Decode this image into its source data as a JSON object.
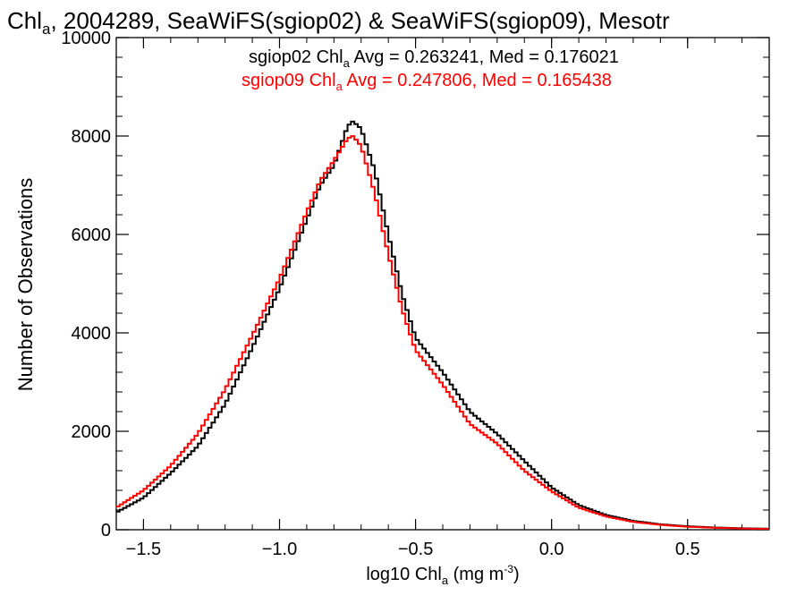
{
  "chart_data": {
    "type": "line",
    "title": {
      "pre": "Chl",
      "sub": "a",
      "post": ", 2004289, SeaWiFS(sgiop02) & SeaWiFS(sgiop09), Mesotr"
    },
    "xlabel": {
      "pre": "log10 Chl",
      "sub": "a",
      "post": " (mg m",
      "sup": "-3",
      "end": ")"
    },
    "ylabel": "Number of Observations",
    "xlim": [
      -1.6,
      0.8
    ],
    "ylim": [
      0,
      10000
    ],
    "x_ticks": [
      {
        "value": -1.5,
        "label": "−1.5"
      },
      {
        "value": -1.0,
        "label": "−1.0"
      },
      {
        "value": -0.5,
        "label": "−0.5"
      },
      {
        "value": 0.0,
        "label": "0.0"
      },
      {
        "value": 0.5,
        "label": "0.5"
      }
    ],
    "y_ticks": [
      {
        "value": 0,
        "label": "0"
      },
      {
        "value": 2000,
        "label": "2000"
      },
      {
        "value": 4000,
        "label": "4000"
      },
      {
        "value": 6000,
        "label": "6000"
      },
      {
        "value": 8000,
        "label": "8000"
      },
      {
        "value": 10000,
        "label": "10000"
      }
    ],
    "grid": false,
    "legend_position": "top-center",
    "series": [
      {
        "name": "sgiop02",
        "legend": {
          "pre": "sgiop02 Chl",
          "sub": "a",
          "post": " Avg = 0.263241, Med = 0.176021"
        },
        "color": "#000000",
        "x": [
          -1.6,
          -1.5,
          -1.4,
          -1.3,
          -1.2,
          -1.1,
          -1.0,
          -0.9,
          -0.85,
          -0.8,
          -0.75,
          -0.73,
          -0.7,
          -0.65,
          -0.6,
          -0.55,
          -0.5,
          -0.4,
          -0.3,
          -0.2,
          -0.1,
          0.0,
          0.1,
          0.2,
          0.3,
          0.4,
          0.5,
          0.6,
          0.7,
          0.8
        ],
        "y": [
          350,
          650,
          1150,
          1700,
          2550,
          3700,
          4900,
          6300,
          7000,
          7400,
          8200,
          8300,
          8150,
          7300,
          6000,
          4800,
          3900,
          3200,
          2400,
          1950,
          1400,
          860,
          500,
          300,
          180,
          110,
          70,
          45,
          30,
          20
        ]
      },
      {
        "name": "sgiop09",
        "legend": {
          "pre": "sgiop09 Chl",
          "sub": "a",
          "post": " Avg = 0.247806, Med = 0.165438"
        },
        "color": "#ff0000",
        "x": [
          -1.6,
          -1.5,
          -1.4,
          -1.3,
          -1.2,
          -1.1,
          -1.0,
          -0.9,
          -0.85,
          -0.8,
          -0.75,
          -0.73,
          -0.7,
          -0.65,
          -0.6,
          -0.55,
          -0.5,
          -0.4,
          -0.3,
          -0.2,
          -0.1,
          0.0,
          0.1,
          0.2,
          0.3,
          0.4,
          0.5,
          0.6,
          0.7,
          0.8
        ],
        "y": [
          450,
          800,
          1300,
          1950,
          2850,
          3950,
          5100,
          6450,
          7100,
          7500,
          7950,
          8000,
          7800,
          6850,
          5600,
          4500,
          3650,
          2950,
          2150,
          1750,
          1200,
          780,
          450,
          270,
          160,
          100,
          60,
          40,
          25,
          15
        ]
      }
    ]
  }
}
